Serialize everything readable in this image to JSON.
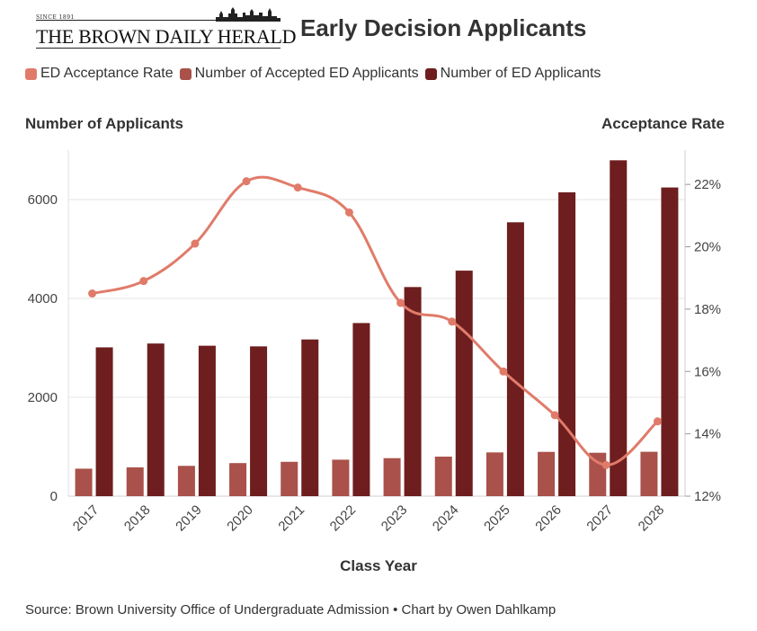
{
  "masthead": {
    "since": "SINCE 1891",
    "name": "THE BROWN DAILY HERALD"
  },
  "title": "Early Decision Applicants",
  "legend": [
    {
      "label": "ED Acceptance Rate",
      "color": "#e07b6a"
    },
    {
      "label": "Number of Accepted ED Applicants",
      "color": "#a9514a"
    },
    {
      "label": "Number of ED Applicants",
      "color": "#6e1e1e"
    }
  ],
  "axis_titles": {
    "left": "Number of Applicants",
    "right": "Acceptance Rate",
    "x": "Class Year"
  },
  "source": "Source: Brown University Office of Undergraduate Admission • Chart by Owen Dahlkamp",
  "chart_data": {
    "type": "bar",
    "categories": [
      "2017",
      "2018",
      "2019",
      "2020",
      "2021",
      "2022",
      "2023",
      "2024",
      "2025",
      "2026",
      "2027",
      "2028"
    ],
    "series": [
      {
        "name": "Number of Accepted ED Applicants",
        "type": "bar",
        "axis": "left",
        "color": "#a9514a",
        "values": [
          556,
          583,
          613,
          669,
          695,
          738,
          769,
          800,
          885,
          896,
          878,
          898
        ]
      },
      {
        "name": "Number of ED Applicants",
        "type": "bar",
        "axis": "left",
        "color": "#6e1e1e",
        "values": [
          3010,
          3088,
          3043,
          3030,
          3170,
          3502,
          4230,
          4562,
          5540,
          6146,
          6794,
          6244
        ]
      },
      {
        "name": "ED Acceptance Rate",
        "type": "line",
        "axis": "right",
        "color": "#e07b6a",
        "values": [
          18.5,
          18.9,
          20.1,
          22.1,
          21.9,
          21.1,
          18.2,
          17.6,
          16.0,
          14.6,
          13.0,
          14.4
        ]
      }
    ],
    "y_left": {
      "lim": [
        0,
        7000
      ],
      "ticks": [
        0,
        2000,
        4000,
        6000
      ]
    },
    "y_right": {
      "lim": [
        12,
        23.1
      ],
      "ticks": [
        12,
        14,
        16,
        18,
        20,
        22
      ],
      "suffix": "%"
    },
    "grid": true
  }
}
